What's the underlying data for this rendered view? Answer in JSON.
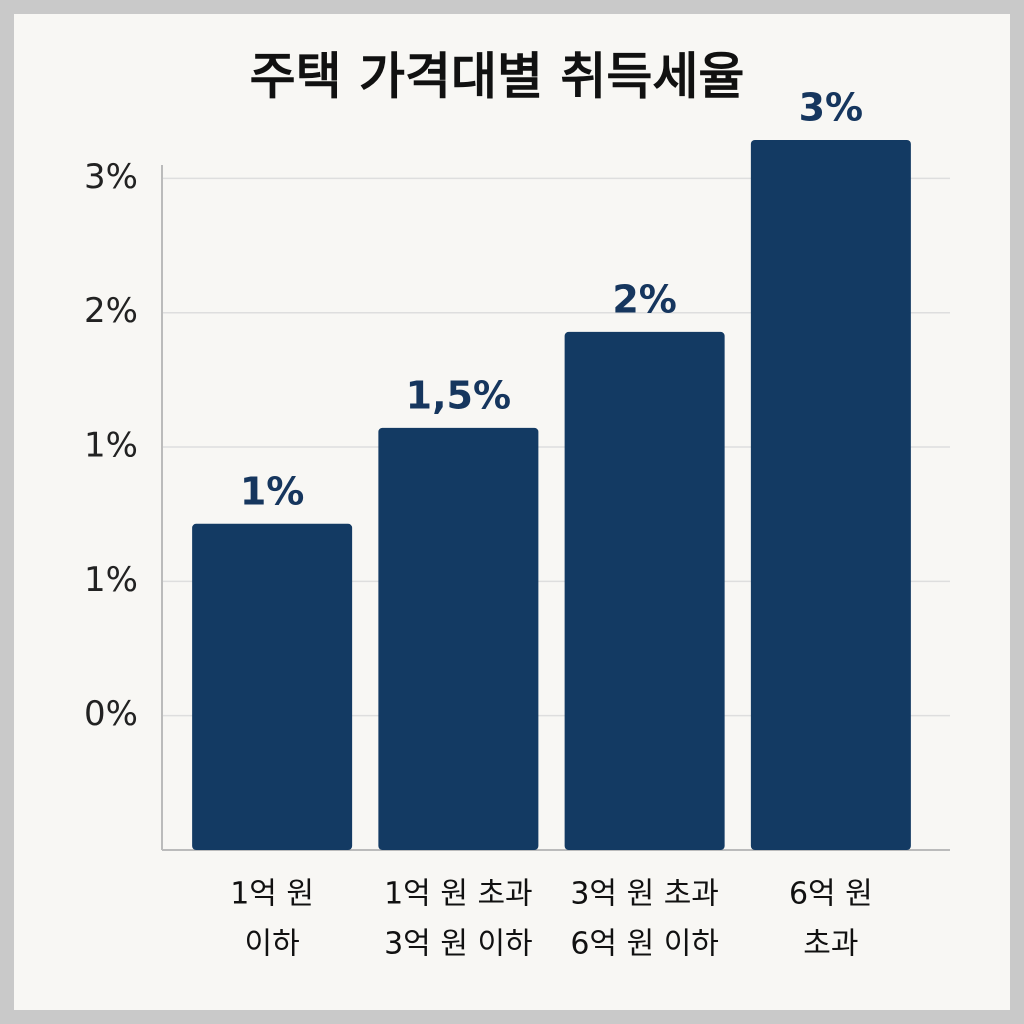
{
  "chart_data": {
    "type": "bar",
    "title": "주택 가격대별 취득세율",
    "categories": [
      [
        "1억 원",
        "이하"
      ],
      [
        "1억 원 초과",
        "3억 원 이하"
      ],
      [
        "3억 원 초과",
        "6억 원 이하"
      ],
      [
        "6억 원",
        "초과"
      ]
    ],
    "values": [
      1,
      1.5,
      2,
      3
    ],
    "value_labels": [
      "1%",
      "1,5%",
      "2%",
      "3%"
    ],
    "color": "#133a63",
    "ylim": [
      -0.7,
      3.0
    ],
    "yticks": [
      {
        "value": 0,
        "label": "0%"
      },
      {
        "value": 0.7,
        "label": "1%"
      },
      {
        "value": 1.4,
        "label": "1%"
      },
      {
        "value": 2.1,
        "label": "2%"
      },
      {
        "value": 2.8,
        "label": "3%"
      }
    ],
    "grid": true
  }
}
